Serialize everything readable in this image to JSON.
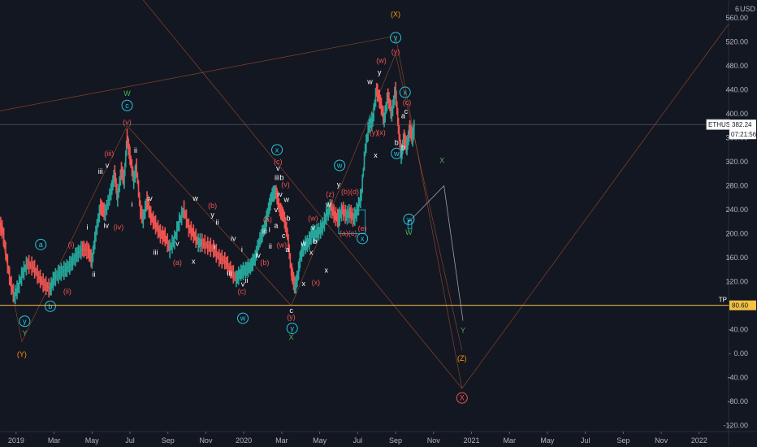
{
  "chart_data": {
    "type": "candlestick",
    "symbol": "ETHUSD",
    "currency": "USD",
    "price_tag": {
      "value": "382.24",
      "countdown": "07:21:56"
    },
    "tp_line": {
      "label": "TP",
      "value": 80.6,
      "display": "80.60"
    },
    "y_axis": {
      "ylim": [
        -130,
        590
      ],
      "ticks": [
        -120,
        -80,
        -40,
        0,
        40,
        80,
        120,
        160,
        200,
        240,
        280,
        320,
        360,
        400,
        440,
        480,
        520,
        560
      ],
      "top_label": "6"
    },
    "x_axis": {
      "ticks": [
        {
          "label": "2019",
          "t": 0
        },
        {
          "label": "Mar",
          "t": 2
        },
        {
          "label": "May",
          "t": 4
        },
        {
          "label": "Jul",
          "t": 6
        },
        {
          "label": "Sep",
          "t": 8
        },
        {
          "label": "Nov",
          "t": 10
        },
        {
          "label": "2020",
          "t": 12
        },
        {
          "label": "Mar",
          "t": 14
        },
        {
          "label": "May",
          "t": 16
        },
        {
          "label": "Jul",
          "t": 18
        },
        {
          "label": "Sep",
          "t": 20
        },
        {
          "label": "Nov",
          "t": 22
        },
        {
          "label": "2021",
          "t": 24
        },
        {
          "label": "Mar",
          "t": 26
        },
        {
          "label": "May",
          "t": 28
        },
        {
          "label": "Jul",
          "t": 30
        },
        {
          "label": "Sep",
          "t": 32
        },
        {
          "label": "Nov",
          "t": 34
        },
        {
          "label": "2022",
          "t": 36
        }
      ],
      "xlim": [
        -0.85,
        37.55
      ]
    },
    "price_path": [
      [
        -0.85,
        215
      ],
      [
        -0.7,
        205
      ],
      [
        -0.5,
        160
      ],
      [
        -0.3,
        120
      ],
      [
        -0.1,
        95
      ],
      [
        0.1,
        110
      ],
      [
        0.35,
        135
      ],
      [
        0.6,
        150
      ],
      [
        0.9,
        145
      ],
      [
        1.2,
        128
      ],
      [
        1.5,
        115
      ],
      [
        1.8,
        108
      ],
      [
        2.0,
        125
      ],
      [
        2.3,
        135
      ],
      [
        2.6,
        140
      ],
      [
        2.9,
        150
      ],
      [
        3.2,
        165
      ],
      [
        3.5,
        175
      ],
      [
        3.8,
        172
      ],
      [
        4.0,
        155
      ],
      [
        4.2,
        200
      ],
      [
        4.45,
        245
      ],
      [
        4.7,
        235
      ],
      [
        5.0,
        270
      ],
      [
        5.2,
        300
      ],
      [
        5.35,
        260
      ],
      [
        5.55,
        305
      ],
      [
        5.7,
        290
      ],
      [
        5.85,
        360
      ],
      [
        6.0,
        330
      ],
      [
        6.2,
        290
      ],
      [
        6.35,
        310
      ],
      [
        6.55,
        240
      ],
      [
        6.7,
        225
      ],
      [
        6.9,
        255
      ],
      [
        7.1,
        230
      ],
      [
        7.35,
        215
      ],
      [
        7.6,
        200
      ],
      [
        7.85,
        195
      ],
      [
        8.1,
        175
      ],
      [
        8.35,
        190
      ],
      [
        8.6,
        220
      ],
      [
        8.85,
        240
      ],
      [
        9.1,
        210
      ],
      [
        9.35,
        200
      ],
      [
        9.6,
        185
      ],
      [
        9.8,
        185
      ],
      [
        10.1,
        180
      ],
      [
        10.4,
        175
      ],
      [
        10.7,
        160
      ],
      [
        11.0,
        155
      ],
      [
        11.3,
        140
      ],
      [
        11.6,
        125
      ],
      [
        11.85,
        135
      ],
      [
        12.1,
        140
      ],
      [
        12.35,
        145
      ],
      [
        12.6,
        160
      ],
      [
        12.85,
        190
      ],
      [
        13.1,
        210
      ],
      [
        13.3,
        240
      ],
      [
        13.5,
        265
      ],
      [
        13.7,
        270
      ],
      [
        13.9,
        240
      ],
      [
        14.1,
        230
      ],
      [
        14.3,
        200
      ],
      [
        14.5,
        140
      ],
      [
        14.6,
        125
      ],
      [
        14.7,
        110
      ],
      [
        14.85,
        130
      ],
      [
        15.0,
        165
      ],
      [
        15.2,
        180
      ],
      [
        15.4,
        185
      ],
      [
        15.6,
        200
      ],
      [
        15.8,
        200
      ],
      [
        16.0,
        205
      ],
      [
        16.2,
        215
      ],
      [
        16.4,
        235
      ],
      [
        16.6,
        245
      ],
      [
        16.8,
        230
      ],
      [
        17.0,
        225
      ],
      [
        17.2,
        240
      ],
      [
        17.4,
        230
      ],
      [
        17.6,
        235
      ],
      [
        17.8,
        225
      ],
      [
        18.0,
        240
      ],
      [
        18.2,
        265
      ],
      [
        18.4,
        340
      ],
      [
        18.6,
        380
      ],
      [
        18.8,
        390
      ],
      [
        19.0,
        440
      ],
      [
        19.2,
        420
      ],
      [
        19.4,
        390
      ],
      [
        19.6,
        430
      ],
      [
        19.8,
        400
      ],
      [
        20.0,
        440
      ],
      [
        20.15,
        380
      ],
      [
        20.3,
        330
      ],
      [
        20.45,
        360
      ],
      [
        20.6,
        345
      ],
      [
        20.75,
        375
      ],
      [
        20.9,
        360
      ],
      [
        21.0,
        382
      ]
    ],
    "wave_labels": [
      {
        "text": "W",
        "t": 5.85,
        "v": 430,
        "color": "#4caf50"
      },
      {
        "text": "c",
        "t": 5.85,
        "v": 410,
        "color": "#26c6da",
        "circle": true
      },
      {
        "text": "(v)",
        "t": 5.85,
        "v": 382,
        "color": "#ef5350"
      },
      {
        "text": "(iii)",
        "t": 4.9,
        "v": 330,
        "color": "#ef5350"
      },
      {
        "text": "iii",
        "t": 4.45,
        "v": 300,
        "color": "#ffffff"
      },
      {
        "text": "v",
        "t": 4.8,
        "v": 310,
        "color": "#ffffff"
      },
      {
        "text": "ii",
        "t": 6.3,
        "v": 335,
        "color": "#ffffff"
      },
      {
        "text": "i",
        "t": 6.1,
        "v": 245,
        "color": "#ffffff"
      },
      {
        "text": "iv",
        "t": 7.05,
        "v": 255,
        "color": "#ffffff"
      },
      {
        "text": "iv",
        "t": 4.75,
        "v": 210,
        "color": "#ffffff"
      },
      {
        "text": "(iv)",
        "t": 5.4,
        "v": 207,
        "color": "#ef5350"
      },
      {
        "text": "i",
        "t": 3.75,
        "v": 207,
        "color": "#ffffff"
      },
      {
        "text": "ii",
        "t": 4.1,
        "v": 128,
        "color": "#ffffff"
      },
      {
        "text": "(i)",
        "t": 2.9,
        "v": 178,
        "color": "#ef5350"
      },
      {
        "text": "(ii)",
        "t": 2.7,
        "v": 100,
        "color": "#ef5350"
      },
      {
        "text": "a",
        "t": 1.3,
        "v": 178,
        "color": "#26c6da",
        "circle": true
      },
      {
        "text": "b",
        "t": 1.8,
        "v": 75,
        "color": "#26c6da",
        "circle": true
      },
      {
        "text": "y",
        "t": 0.45,
        "v": 50,
        "color": "#26c6da",
        "circle": true
      },
      {
        "text": "Y",
        "t": 0.45,
        "v": 30,
        "color": "#4caf50"
      },
      {
        "text": "(Y)",
        "t": 0.3,
        "v": -5,
        "color": "#ff9800"
      },
      {
        "text": "iii",
        "t": 7.35,
        "v": 165,
        "color": "#ffffff"
      },
      {
        "text": "w",
        "t": 9.45,
        "v": 255,
        "color": "#ffffff"
      },
      {
        "text": "(b)",
        "t": 10.35,
        "v": 243,
        "color": "#ef5350"
      },
      {
        "text": "y",
        "t": 10.35,
        "v": 228,
        "color": "#ffffff"
      },
      {
        "text": "ii",
        "t": 10.6,
        "v": 215,
        "color": "#ffffff"
      },
      {
        "text": "v",
        "t": 8.5,
        "v": 180,
        "color": "#ffffff"
      },
      {
        "text": "(a)",
        "t": 8.5,
        "v": 148,
        "color": "#ef5350"
      },
      {
        "text": "x",
        "t": 9.35,
        "v": 150,
        "color": "#ffffff"
      },
      {
        "text": "i",
        "t": 10.45,
        "v": 175,
        "color": "#ffffff"
      },
      {
        "text": "iv",
        "t": 11.45,
        "v": 188,
        "color": "#ffffff"
      },
      {
        "text": "i",
        "t": 11.9,
        "v": 170,
        "color": "#ffffff"
      },
      {
        "text": "iii",
        "t": 11.25,
        "v": 130,
        "color": "#ffffff"
      },
      {
        "text": "v",
        "t": 11.95,
        "v": 112,
        "color": "#ffffff"
      },
      {
        "text": "ii",
        "t": 12.15,
        "v": 118,
        "color": "#ffffff"
      },
      {
        "text": "(c)",
        "t": 11.9,
        "v": 100,
        "color": "#ef5350"
      },
      {
        "text": "w",
        "t": 11.95,
        "v": 55,
        "color": "#26c6da",
        "circle": true
      },
      {
        "text": "iv",
        "t": 12.75,
        "v": 160,
        "color": "#ffffff"
      },
      {
        "text": "(a)",
        "t": 13.25,
        "v": 220,
        "color": "#ef5350"
      },
      {
        "text": "iii",
        "t": 13.1,
        "v": 200,
        "color": "#ffffff"
      },
      {
        "text": "i",
        "t": 13.35,
        "v": 203,
        "color": "#ffffff"
      },
      {
        "text": "(b)",
        "t": 13.1,
        "v": 148,
        "color": "#ef5350"
      },
      {
        "text": "ii",
        "t": 13.4,
        "v": 175,
        "color": "#ffffff"
      },
      {
        "text": "x",
        "t": 13.75,
        "v": 336,
        "color": "#26c6da",
        "circle": true
      },
      {
        "text": "(c)",
        "t": 13.8,
        "v": 316,
        "color": "#ef5350"
      },
      {
        "text": "v",
        "t": 13.8,
        "v": 305,
        "color": "#ffffff"
      },
      {
        "text": "iii",
        "t": 13.75,
        "v": 290,
        "color": "#ffffff"
      },
      {
        "text": "b",
        "t": 14.0,
        "v": 290,
        "color": "#ffffff"
      },
      {
        "text": "(v)",
        "t": 14.2,
        "v": 278,
        "color": "#ef5350"
      },
      {
        "text": "iv",
        "t": 13.9,
        "v": 262,
        "color": "#ffffff"
      },
      {
        "text": "w",
        "t": 14.25,
        "v": 253,
        "color": "#ffffff"
      },
      {
        "text": "v",
        "t": 13.7,
        "v": 236,
        "color": "#ffffff"
      },
      {
        "text": "b",
        "t": 14.35,
        "v": 222,
        "color": "#ffffff"
      },
      {
        "text": "a",
        "t": 13.7,
        "v": 210,
        "color": "#ffffff"
      },
      {
        "text": "c",
        "t": 14.1,
        "v": 193,
        "color": "#ffffff"
      },
      {
        "text": "(w)",
        "t": 14.0,
        "v": 177,
        "color": "#ef5350"
      },
      {
        "text": "a",
        "t": 14.3,
        "v": 170,
        "color": "#ffffff"
      },
      {
        "text": "c",
        "t": 14.5,
        "v": 68,
        "color": "#ffffff"
      },
      {
        "text": "(y)",
        "t": 14.5,
        "v": 57,
        "color": "#ef5350"
      },
      {
        "text": "y",
        "t": 14.55,
        "v": 38,
        "color": "#26c6da",
        "circle": true
      },
      {
        "text": "X",
        "t": 14.5,
        "v": 23,
        "color": "#4caf50"
      },
      {
        "text": "(w)",
        "t": 15.65,
        "v": 222,
        "color": "#ef5350"
      },
      {
        "text": "v",
        "t": 15.65,
        "v": 206,
        "color": "#ffffff"
      },
      {
        "text": "b",
        "t": 15.75,
        "v": 183,
        "color": "#ffffff"
      },
      {
        "text": "w",
        "t": 15.15,
        "v": 180,
        "color": "#ffffff"
      },
      {
        "text": "x",
        "t": 15.55,
        "v": 165,
        "color": "#ffffff"
      },
      {
        "text": "x",
        "t": 15.15,
        "v": 113,
        "color": "#ffffff"
      },
      {
        "text": "(x)",
        "t": 15.8,
        "v": 115,
        "color": "#ef5350"
      },
      {
        "text": "x",
        "t": 16.35,
        "v": 135,
        "color": "#ffffff"
      },
      {
        "text": "w",
        "t": 16.45,
        "v": 245,
        "color": "#ffffff"
      },
      {
        "text": "(z)",
        "t": 16.55,
        "v": 262,
        "color": "#ef5350"
      },
      {
        "text": "y",
        "t": 17.0,
        "v": 278,
        "color": "#ffffff"
      },
      {
        "text": "w",
        "t": 17.05,
        "v": 310,
        "color": "#26c6da",
        "circle": true
      },
      {
        "text": "(b)(d)",
        "t": 17.6,
        "v": 266,
        "color": "#ef5350"
      },
      {
        "text": "(a)(c)",
        "t": 17.5,
        "v": 197,
        "color": "#ef5350"
      },
      {
        "text": "(e)",
        "t": 18.25,
        "v": 205,
        "color": "#ef5350"
      },
      {
        "text": "x",
        "t": 18.25,
        "v": 188,
        "color": "#26c6da",
        "circle": true
      },
      {
        "text": "w",
        "t": 18.65,
        "v": 450,
        "color": "#ffffff"
      },
      {
        "text": "(y)",
        "t": 18.85,
        "v": 365,
        "color": "#ef5350"
      },
      {
        "text": "(x)",
        "t": 19.25,
        "v": 365,
        "color": "#ef5350"
      },
      {
        "text": "x",
        "t": 18.95,
        "v": 327,
        "color": "#ffffff"
      },
      {
        "text": "y",
        "t": 19.15,
        "v": 465,
        "color": "#ffffff"
      },
      {
        "text": "(w)",
        "t": 19.25,
        "v": 485,
        "color": "#ef5350"
      },
      {
        "text": "(X)",
        "t": 20.0,
        "v": 562,
        "color": "#ff9800"
      },
      {
        "text": "y",
        "t": 20.0,
        "v": 523,
        "color": "#26c6da",
        "circle": true
      },
      {
        "text": "(y)",
        "t": 20.0,
        "v": 500,
        "color": "#ef5350"
      },
      {
        "text": "b",
        "t": 20.05,
        "v": 348,
        "color": "#ffffff"
      },
      {
        "text": "w",
        "t": 20.05,
        "v": 330,
        "color": "#26c6da",
        "circle": true
      },
      {
        "text": "b",
        "t": 20.4,
        "v": 340,
        "color": "#ffffff"
      },
      {
        "text": "x",
        "t": 20.5,
        "v": 432,
        "color": "#26c6da",
        "circle": true
      },
      {
        "text": "(c)",
        "t": 20.6,
        "v": 415,
        "color": "#ef5350"
      },
      {
        "text": "c",
        "t": 20.55,
        "v": 400,
        "color": "#ffffff"
      },
      {
        "text": "a",
        "t": 20.4,
        "v": 393,
        "color": "#ffffff"
      },
      {
        "text": "y",
        "t": 20.7,
        "v": 220,
        "color": "#26c6da",
        "circle": true
      },
      {
        "text": "W",
        "t": 20.7,
        "v": 198,
        "color": "#4caf50"
      },
      {
        "text": "X",
        "t": 22.45,
        "v": 318,
        "color": "#4caf50"
      },
      {
        "text": "Y",
        "t": 23.55,
        "v": 35,
        "color": "#4caf50"
      },
      {
        "text": "(Z)",
        "t": 23.5,
        "v": -12,
        "color": "#ff9800"
      },
      {
        "text": "X",
        "t": 23.5,
        "v": -78,
        "color": "#ef5350",
        "circle": true
      }
    ],
    "projection": [
      [
        20.7,
        220
      ],
      [
        22.55,
        280
      ],
      [
        23.55,
        55
      ]
    ],
    "bracket_lines": [
      [
        [
          -0.85,
          405
        ],
        [
          20.0,
          530
        ]
      ],
      [
        [
          20.0,
          530
        ],
        [
          23.5,
          -58
        ]
      ],
      [
        [
          23.5,
          -58
        ],
        [
          37.55,
          550
        ]
      ],
      [
        [
          5.4,
          640
        ],
        [
          23.5,
          -58
        ]
      ],
      [
        [
          -0.85,
          210
        ],
        [
          0.3,
          20
        ]
      ],
      [
        [
          0.3,
          20
        ],
        [
          5.85,
          380
        ]
      ],
      [
        [
          5.85,
          380
        ],
        [
          14.5,
          80
        ]
      ],
      [
        [
          14.5,
          80
        ],
        [
          20.0,
          500
        ]
      ],
      [
        [
          20.0,
          500
        ],
        [
          23.5,
          5
        ]
      ]
    ],
    "boxes": [
      {
        "t1": 17.0,
        "t2": 18.4,
        "v1": 240,
        "v2": 200
      },
      {
        "t1": 20.65,
        "t2": 20.85,
        "v1": 222,
        "v2": 208
      }
    ],
    "hline_v": 382.24
  }
}
